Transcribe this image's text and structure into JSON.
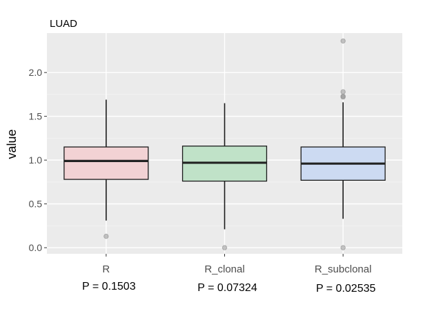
{
  "chart_data": {
    "type": "boxplot",
    "title": "LUAD",
    "ylabel": "value",
    "xlabel": "",
    "ylim": [
      -0.07,
      2.45
    ],
    "yticks": [
      "0.0",
      "0.5",
      "1.0",
      "1.5",
      "2.0"
    ],
    "ytick_values": [
      0.0,
      0.5,
      1.0,
      1.5,
      2.0
    ],
    "grid": true,
    "categories": [
      "R",
      "R_clonal",
      "R_subclonal"
    ],
    "series": [
      {
        "name": "R",
        "color": "#f2d2d4",
        "whisker_low": 0.31,
        "q1": 0.78,
        "median": 0.99,
        "q3": 1.15,
        "whisker_high": 1.69,
        "outliers": [
          0.13
        ],
        "pvalue": "P = 0.1503"
      },
      {
        "name": "R_clonal",
        "color": "#c0e2c8",
        "whisker_low": 0.21,
        "q1": 0.76,
        "median": 0.97,
        "q3": 1.16,
        "whisker_high": 1.65,
        "outliers": [
          0.0
        ],
        "pvalue": "P = 0.07324"
      },
      {
        "name": "R_subclonal",
        "color": "#ccdaf2",
        "whisker_low": 0.33,
        "q1": 0.77,
        "median": 0.96,
        "q3": 1.15,
        "whisker_high": 1.66,
        "outliers": [
          0.0,
          1.72,
          1.73,
          1.78,
          2.36
        ],
        "pvalue": "P = 0.02535"
      }
    ]
  }
}
